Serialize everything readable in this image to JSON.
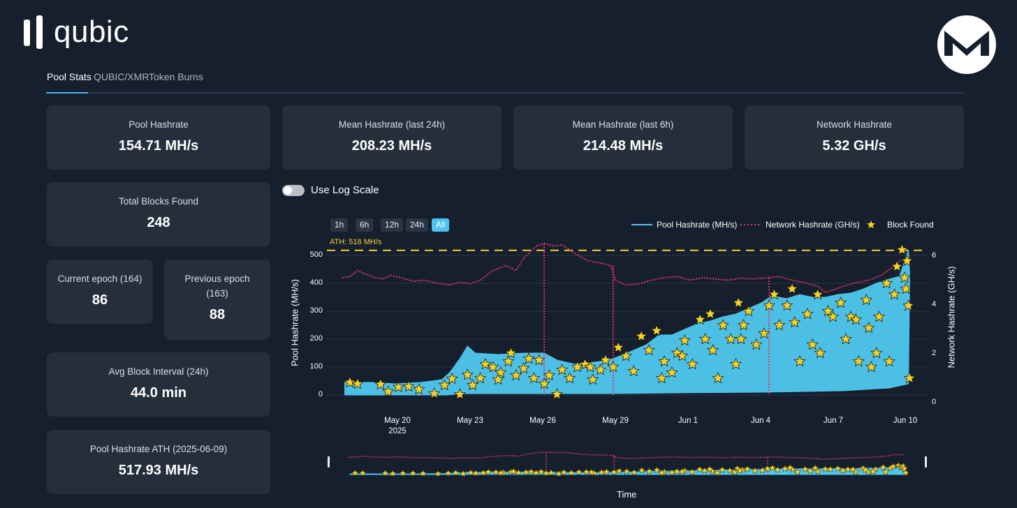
{
  "app": {
    "name": "qubic"
  },
  "tabs": [
    {
      "label": "Pool Stats"
    },
    {
      "label": "QUBIC/XMR"
    },
    {
      "label": "Token Burns"
    }
  ],
  "stats": {
    "pool_hashrate": {
      "label": "Pool Hashrate",
      "value": "154.71 MH/s"
    },
    "mean_24h": {
      "label": "Mean Hashrate (last 24h)",
      "value": "208.23 MH/s"
    },
    "mean_6h": {
      "label": "Mean Hashrate (last 6h)",
      "value": "214.48 MH/s"
    },
    "network_hashrate": {
      "label": "Network Hashrate",
      "value": "5.32 GH/s"
    },
    "total_blocks": {
      "label": "Total Blocks Found",
      "value": "248"
    },
    "current_epoch": {
      "label": "Current epoch (164)",
      "value": "86"
    },
    "previous_epoch": {
      "label_line1": "Previous epoch",
      "label_line2": "(163)",
      "value": "88"
    },
    "avg_block_interval": {
      "label": "Avg Block Interval (24h)",
      "value": "44.0 min"
    },
    "pool_ath": {
      "label": "Pool Hashrate ATH (2025-06-09)",
      "value": "517.93 MH/s"
    }
  },
  "controls": {
    "log_scale_label": "Use Log Scale",
    "ranges": [
      "1h",
      "6h",
      "12h",
      "24h",
      "All"
    ],
    "active_range": "All"
  },
  "colors": {
    "pool": "#4fc8ef",
    "network": "#e8336e",
    "block": "#f6d323",
    "ath": "#f1d13a",
    "background": "#161f2d",
    "card": "#252f3c"
  },
  "chart_data": {
    "type": "line",
    "legend": [
      "Pool Hashrate (MH/s)",
      "Network Hashrate (GH/s)",
      "Block Found"
    ],
    "ath_label": "ATH: 518 MH/s",
    "ath_value": 518,
    "ylabel_left": "Pool Hashrate (MH/s)",
    "ylabel_right": "Network Hashrate (GH/s)",
    "xlabel": "Time",
    "yticks_left": [
      "0",
      "100",
      "200",
      "300",
      "400",
      "500"
    ],
    "yticks_right": [
      "0",
      "2",
      "4",
      "6"
    ],
    "ylim_left": [
      0,
      520
    ],
    "ylim_right": [
      0,
      6.2
    ],
    "xlim_days": [
      -2.2,
      21.3
    ],
    "xticks": [
      {
        "day": 0,
        "label": "May 20",
        "sub": "2025"
      },
      {
        "day": 3,
        "label": "May 23",
        "sub": ""
      },
      {
        "day": 6,
        "label": "May 26",
        "sub": ""
      },
      {
        "day": 9,
        "label": "May 29",
        "sub": ""
      },
      {
        "day": 12,
        "label": "Jun 1",
        "sub": ""
      },
      {
        "day": 15,
        "label": "Jun 4",
        "sub": ""
      },
      {
        "day": 18,
        "label": "Jun 7",
        "sub": ""
      },
      {
        "day": 21,
        "label": "Jun 10",
        "sub": ""
      }
    ],
    "pool_upper": [
      [
        -1.5,
        45
      ],
      [
        -0.5,
        45
      ],
      [
        0.5,
        40
      ],
      [
        1.5,
        45
      ],
      [
        2.3,
        55
      ],
      [
        2.6,
        80
      ],
      [
        3.0,
        130
      ],
      [
        3.3,
        175
      ],
      [
        3.6,
        150
      ],
      [
        4.5,
        145
      ],
      [
        5.5,
        150
      ],
      [
        6.3,
        150
      ],
      [
        6.8,
        125
      ],
      [
        7.5,
        110
      ],
      [
        8.5,
        120
      ],
      [
        9.0,
        130
      ],
      [
        9.4,
        145
      ],
      [
        9.8,
        160
      ],
      [
        10.3,
        180
      ],
      [
        10.8,
        215
      ],
      [
        11.3,
        215
      ],
      [
        11.8,
        235
      ],
      [
        12.3,
        255
      ],
      [
        12.8,
        265
      ],
      [
        13.3,
        280
      ],
      [
        13.8,
        290
      ],
      [
        14.3,
        310
      ],
      [
        14.8,
        330
      ],
      [
        15.2,
        355
      ],
      [
        15.8,
        345
      ],
      [
        16.3,
        360
      ],
      [
        16.8,
        350
      ],
      [
        17.3,
        350
      ],
      [
        17.8,
        360
      ],
      [
        18.3,
        365
      ],
      [
        18.8,
        380
      ],
      [
        19.3,
        400
      ],
      [
        19.8,
        415
      ],
      [
        20.2,
        425
      ],
      [
        20.55,
        520
      ],
      [
        20.6,
        430
      ]
    ],
    "pool_lower": [
      [
        -1.5,
        0
      ],
      [
        2.5,
        0
      ],
      [
        3.0,
        5
      ],
      [
        6.0,
        5
      ],
      [
        9.0,
        5
      ],
      [
        12.0,
        8
      ],
      [
        15.0,
        10
      ],
      [
        18.0,
        15
      ],
      [
        19.8,
        25
      ],
      [
        20.55,
        40
      ]
    ],
    "network": [
      [
        -1.6,
        4.8
      ],
      [
        -1.3,
        4.85
      ],
      [
        -1.0,
        5.1
      ],
      [
        -0.7,
        4.95
      ],
      [
        -0.3,
        4.8
      ],
      [
        0.0,
        4.75
      ],
      [
        0.3,
        4.9
      ],
      [
        0.7,
        4.8
      ],
      [
        1.2,
        4.65
      ],
      [
        1.6,
        4.7
      ],
      [
        2.0,
        4.6
      ],
      [
        2.6,
        4.5
      ],
      [
        3.0,
        4.62
      ],
      [
        3.4,
        4.55
      ],
      [
        3.8,
        4.7
      ],
      [
        4.3,
        5.1
      ],
      [
        4.8,
        5.3
      ],
      [
        5.2,
        5.1
      ],
      [
        5.5,
        5.6
      ],
      [
        6.0,
        6.1
      ],
      [
        6.3,
        6.2
      ],
      [
        6.7,
        6.1
      ],
      [
        7.0,
        6.15
      ],
      [
        7.5,
        5.8
      ],
      [
        8.0,
        5.5
      ],
      [
        8.5,
        5.4
      ],
      [
        8.9,
        5.3
      ],
      [
        9.1,
        4.7
      ],
      [
        9.5,
        4.5
      ],
      [
        10.0,
        4.55
      ],
      [
        10.5,
        4.7
      ],
      [
        11.0,
        4.8
      ],
      [
        11.5,
        4.85
      ],
      [
        12.0,
        4.7
      ],
      [
        12.5,
        4.8
      ],
      [
        13.0,
        4.75
      ],
      [
        13.5,
        4.7
      ],
      [
        14.0,
        4.78
      ],
      [
        14.5,
        4.75
      ],
      [
        15.0,
        4.8
      ],
      [
        15.5,
        4.85
      ],
      [
        16.0,
        4.7
      ],
      [
        16.5,
        4.6
      ],
      [
        17.0,
        4.45
      ],
      [
        17.3,
        4.2
      ],
      [
        17.6,
        4.3
      ],
      [
        18.0,
        4.45
      ],
      [
        18.5,
        4.6
      ],
      [
        19.0,
        4.7
      ],
      [
        19.5,
        4.9
      ],
      [
        19.9,
        5.2
      ],
      [
        20.2,
        5.5
      ],
      [
        20.55,
        5.55
      ]
    ],
    "network_dips": [
      {
        "day": 6.3,
        "value": 0
      },
      {
        "day": 9.0,
        "value": 0
      },
      {
        "day": 15.1,
        "value": 0
      }
    ],
    "blocks": [
      [
        -1.3,
        45
      ],
      [
        -1.0,
        40
      ],
      [
        -0.1,
        38
      ],
      [
        0.2,
        12
      ],
      [
        0.6,
        28
      ],
      [
        1.0,
        30
      ],
      [
        1.4,
        20
      ],
      [
        2.0,
        5
      ],
      [
        2.4,
        35
      ],
      [
        2.7,
        58
      ],
      [
        3.0,
        2
      ],
      [
        3.3,
        72
      ],
      [
        3.5,
        35
      ],
      [
        3.8,
        60
      ],
      [
        4.0,
        110
      ],
      [
        4.3,
        100
      ],
      [
        4.6,
        80
      ],
      [
        4.9,
        120
      ],
      [
        5.2,
        70
      ],
      [
        5.5,
        95
      ],
      [
        5.7,
        130
      ],
      [
        5.9,
        60
      ],
      [
        6.1,
        125
      ],
      [
        6.3,
        40
      ],
      [
        6.5,
        70
      ],
      [
        6.8,
        2
      ],
      [
        7.0,
        90
      ],
      [
        7.3,
        60
      ],
      [
        7.6,
        100
      ],
      [
        7.9,
        110
      ],
      [
        8.2,
        55
      ],
      [
        8.5,
        90
      ],
      [
        8.7,
        125
      ],
      [
        9.0,
        100
      ],
      [
        9.2,
        170
      ],
      [
        9.5,
        140
      ],
      [
        9.8,
        85
      ],
      [
        10.1,
        210
      ],
      [
        10.4,
        160
      ],
      [
        10.7,
        230
      ],
      [
        11.0,
        120
      ],
      [
        11.3,
        80
      ],
      [
        11.5,
        150
      ],
      [
        11.8,
        195
      ],
      [
        12.1,
        110
      ],
      [
        12.4,
        270
      ],
      [
        12.6,
        200
      ],
      [
        12.9,
        160
      ],
      [
        13.1,
        60
      ],
      [
        13.3,
        250
      ],
      [
        13.6,
        200
      ],
      [
        13.8,
        110
      ],
      [
        14.1,
        250
      ],
      [
        14.3,
        300
      ],
      [
        14.6,
        180
      ],
      [
        14.9,
        220
      ],
      [
        15.1,
        320
      ],
      [
        15.3,
        360
      ],
      [
        15.5,
        250
      ],
      [
        15.8,
        320
      ],
      [
        16.1,
        260
      ],
      [
        16.3,
        120
      ],
      [
        16.6,
        290
      ],
      [
        16.8,
        180
      ],
      [
        17.1,
        150
      ],
      [
        17.4,
        300
      ],
      [
        17.6,
        280
      ],
      [
        17.9,
        330
      ],
      [
        18.1,
        200
      ],
      [
        18.3,
        280
      ],
      [
        18.6,
        120
      ],
      [
        18.9,
        340
      ],
      [
        19.1,
        100
      ],
      [
        19.4,
        280
      ],
      [
        19.7,
        400
      ],
      [
        20.0,
        360
      ],
      [
        20.1,
        460
      ],
      [
        20.3,
        520
      ],
      [
        20.4,
        420
      ],
      [
        20.45,
        380
      ],
      [
        20.5,
        480
      ],
      [
        20.55,
        320
      ],
      [
        20.6,
        60
      ],
      [
        19.8,
        120
      ],
      [
        19.3,
        150
      ],
      [
        18.5,
        270
      ],
      [
        16.0,
        380
      ],
      [
        13.9,
        330
      ],
      [
        11.7,
        140
      ],
      [
        10.9,
        60
      ],
      [
        8.1,
        100
      ],
      [
        5.0,
        150
      ],
      [
        4.5,
        55
      ],
      [
        12.8,
        290
      ],
      [
        14.0,
        200
      ],
      [
        17.0,
        360
      ],
      [
        19.0,
        240
      ]
    ],
    "navigator": {
      "lower_start": "May 18",
      "end": "Jun 10"
    }
  }
}
